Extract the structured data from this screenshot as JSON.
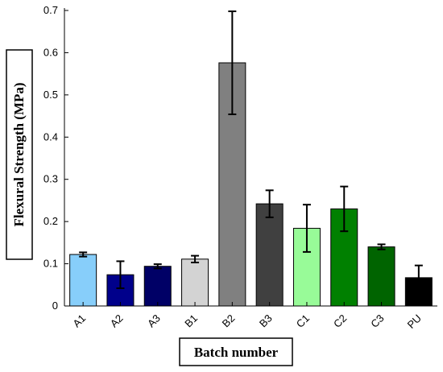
{
  "chart_data": {
    "type": "bar",
    "xlabel": "Batch number",
    "ylabel": "Flexural Strength (MPa)",
    "ylim": [
      0,
      0.7
    ],
    "yticks": [
      0,
      0.1,
      0.2,
      0.3,
      0.4,
      0.5,
      0.6,
      0.7
    ],
    "ytick_labels": [
      "0",
      "0.1",
      "0.2",
      "0.3",
      "0.4",
      "0.5",
      "0.6",
      "0.7"
    ],
    "grid": false,
    "legend": "none",
    "categories": [
      "A1",
      "A2",
      "A3",
      "B1",
      "B2",
      "B3",
      "C1",
      "C2",
      "C3",
      "PU"
    ],
    "values": [
      0.122,
      0.074,
      0.094,
      0.111,
      0.576,
      0.242,
      0.184,
      0.23,
      0.14,
      0.067
    ],
    "error": [
      0.005,
      0.032,
      0.005,
      0.008,
      0.122,
      0.032,
      0.056,
      0.053,
      0.006,
      0.029
    ],
    "colors": [
      "#87cefa",
      "#00008b",
      "#000066",
      "#d3d3d3",
      "#808080",
      "#404040",
      "#98fb98",
      "#008000",
      "#006400",
      "#000000"
    ]
  }
}
